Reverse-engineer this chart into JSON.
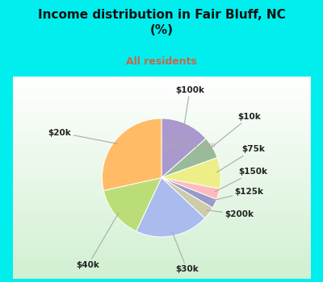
{
  "title": "Income distribution in Fair Bluff, NC\n(%)",
  "subtitle": "All residents",
  "title_color": "#111111",
  "subtitle_color": "#cc6644",
  "bg_cyan": "#00eeee",
  "labels": [
    "$100k",
    "$10k",
    "$75k",
    "$150k",
    "$125k",
    "$200k",
    "$30k",
    "$40k",
    "$20k"
  ],
  "sizes": [
    13.5,
    6.0,
    8.5,
    3.0,
    2.5,
    3.5,
    20.0,
    14.5,
    28.5
  ],
  "colors": [
    "#aa99cc",
    "#99bb99",
    "#eeee88",
    "#ffbbbb",
    "#9999cc",
    "#ccccaa",
    "#aabbee",
    "#bbdd77",
    "#ffbb66"
  ],
  "label_color": "#222222",
  "label_fontsize": 7.5,
  "title_fontsize": 11,
  "subtitle_fontsize": 9
}
